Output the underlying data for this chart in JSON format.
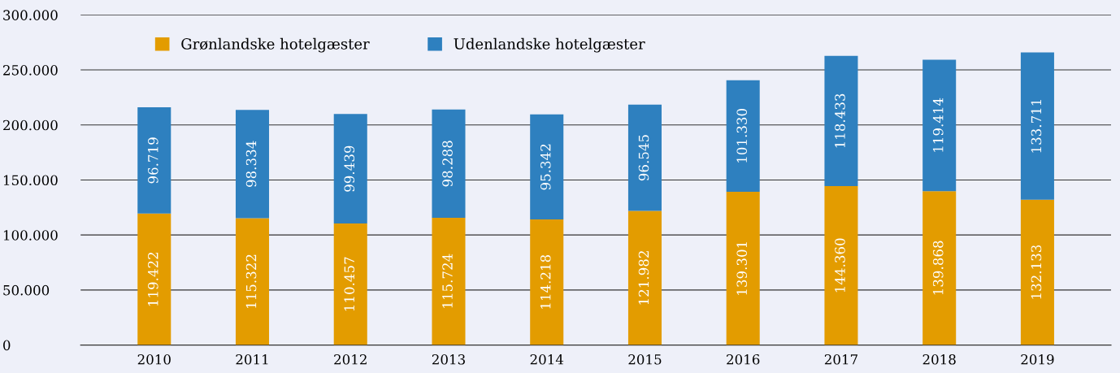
{
  "chart_data": {
    "type": "bar",
    "stacked": true,
    "categories": [
      "2010",
      "2011",
      "2012",
      "2013",
      "2014",
      "2015",
      "2016",
      "2017",
      "2018",
      "2019"
    ],
    "series": [
      {
        "name": "Grønlandske hotelgæster",
        "color": "#e39c00",
        "values": [
          119422,
          115322,
          110457,
          115724,
          114218,
          121982,
          139301,
          144360,
          139868,
          132133
        ],
        "value_labels": [
          "119.422",
          "115.322",
          "110.457",
          "115.724",
          "114.218",
          "121.982",
          "139.301",
          "144.360",
          "139.868",
          "132.133"
        ]
      },
      {
        "name": "Udenlandske hotelgæster",
        "color": "#2e80bf",
        "values": [
          96719,
          98334,
          99439,
          98288,
          95342,
          96545,
          101330,
          118433,
          119414,
          133711
        ],
        "value_labels": [
          "96.719",
          "98.334",
          "99.439",
          "98.288",
          "95.342",
          "96.545",
          "101.330",
          "118.433",
          "119.414",
          "133.711"
        ]
      }
    ],
    "ylim": [
      0,
      300000
    ],
    "yticks": [
      {
        "value": 0,
        "label": "0"
      },
      {
        "value": 50000,
        "label": "50.000"
      },
      {
        "value": 100000,
        "label": "100.000"
      },
      {
        "value": 150000,
        "label": "150.000"
      },
      {
        "value": 200000,
        "label": "200.000"
      },
      {
        "value": 250000,
        "label": "250.000"
      },
      {
        "value": 300000,
        "label": "300.000"
      }
    ],
    "grid": "y",
    "legend": "top left"
  }
}
